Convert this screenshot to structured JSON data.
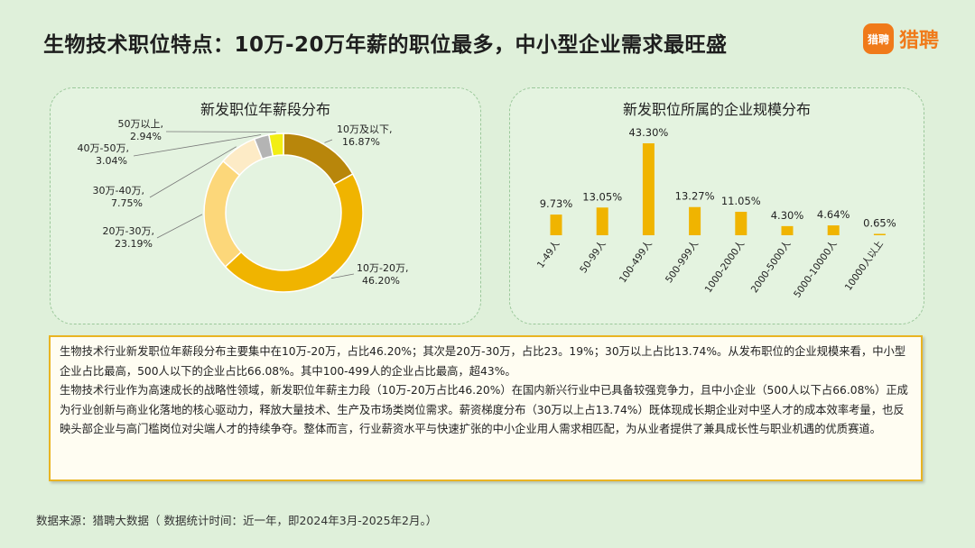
{
  "title": "生物技术职位特点：10万-20万年薪的职位最多，中小型企业需求最旺盛",
  "logo": {
    "badge": "猎聘",
    "text": "猎聘"
  },
  "colors": {
    "accent": "#f0b400",
    "logo": "#f07a1a",
    "panel_border": "#9bc89a"
  },
  "chart_data": [
    {
      "type": "pie",
      "title": "新发职位年薪段分布",
      "labels": [
        "10万及以下,",
        "10万-20万,",
        "20万-30万,",
        "30万-40万,",
        "40万-50万,",
        "50万以上,"
      ],
      "value_labels": [
        "16.87%",
        "46.20%",
        "23.19%",
        "7.75%",
        "3.04%",
        "2.94%"
      ],
      "values": [
        16.87,
        46.2,
        23.19,
        7.75,
        3.04,
        2.94
      ],
      "colors": [
        "#b8860b",
        "#f0b400",
        "#fcd77a",
        "#fdebc6",
        "#b4b4b4",
        "#f2ee14"
      ],
      "donut": true
    },
    {
      "type": "bar",
      "title": "新发职位所属的企业规模分布",
      "categories": [
        "1-49人",
        "50-99人",
        "100-499人",
        "500-999人",
        "1000-2000人",
        "2000-5000人",
        "5000-10000人",
        "10000人以上"
      ],
      "values": [
        9.73,
        13.05,
        43.3,
        13.27,
        11.05,
        4.3,
        4.64,
        0.65
      ],
      "value_labels": [
        "9.73%",
        "13.05%",
        "43.30%",
        "13.27%",
        "11.05%",
        "4.30%",
        "4.64%",
        "0.65%"
      ],
      "color": "#f0b400"
    }
  ],
  "summary": {
    "p1": "生物技术行业新发职位年薪段分布主要集中在10万-20万，占比46.20%；其次是20万-30万，占比23。19%；30万以上占比13.74%。从发布职位的企业规模来看，中小型企业占比最高，500人以下的企业占比66.08%。其中100-499人的企业占比最高，超43%。",
    "p2": "生物技术行业作为高速成长的战略性领域，新发职位年薪主力段（10万-20万占比46.20%）在国内新兴行业中已具备较强竞争力，且中小企业（500人以下占66.08%）正成为行业创新与商业化落地的核心驱动力，释放大量技术、生产及市场类岗位需求。薪资梯度分布（30万以上占13.74%）既体现成长期企业对中坚人才的成本效率考量，也反映头部企业与高门槛岗位对尖端人才的持续争夺。整体而言，行业薪资水平与快速扩张的中小企业用人需求相匹配，为从业者提供了兼具成长性与职业机遇的优质赛道。"
  },
  "source": "数据来源：猎聘大数据（ 数据统计时间：近一年，即2024年3月-2025年2月。）"
}
